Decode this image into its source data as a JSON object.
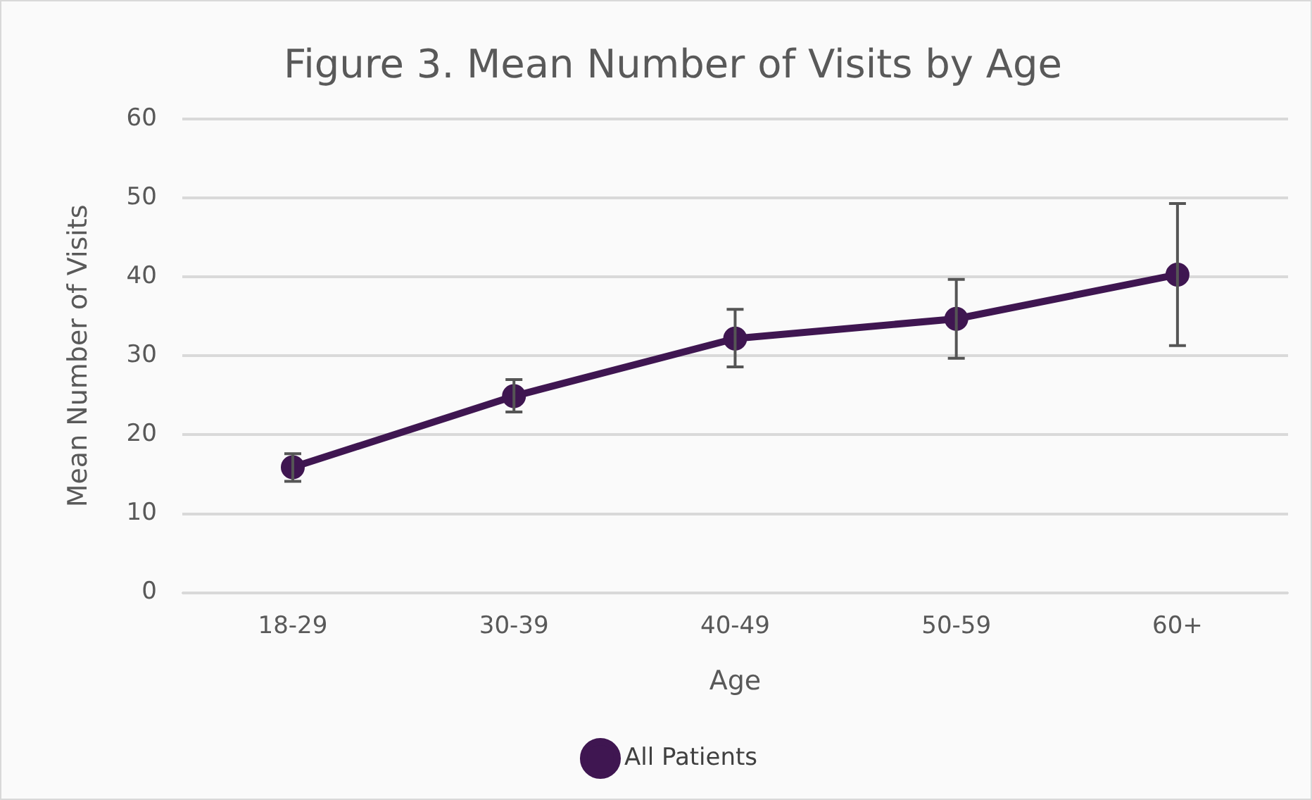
{
  "chart_data": {
    "type": "line",
    "title": "Figure 3. Mean Number of Visits by Age",
    "xlabel": "Age",
    "ylabel": "Mean Number of Visits",
    "categories": [
      "18-29",
      "30-39",
      "40-49",
      "50-59",
      "60+"
    ],
    "series": [
      {
        "name": "All Patients",
        "color": "#3f1651",
        "values": [
          15.9,
          24.9,
          32.2,
          34.7,
          40.3
        ],
        "errors": [
          [
            14.1,
            17.6
          ],
          [
            22.9,
            27.0
          ],
          [
            28.6,
            35.9
          ],
          [
            29.7,
            39.7
          ],
          [
            31.3,
            49.3
          ]
        ]
      }
    ],
    "ylim": [
      0,
      60
    ],
    "yticks": [
      0,
      10,
      20,
      30,
      40,
      50,
      60
    ],
    "grid": "y",
    "legend": "bottom",
    "marker": "circle",
    "line_style": "solid"
  }
}
